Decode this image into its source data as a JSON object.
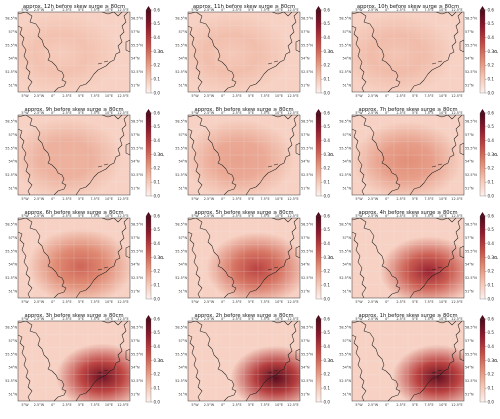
{
  "figure": {
    "panels": [
      {
        "title": "approx. 12h before skew surge ≥ 80cm",
        "intensity": 0.1
      },
      {
        "title": "approx. 11h before skew surge ≥ 80cm",
        "intensity": 0.11
      },
      {
        "title": "approx. 10h before skew surge ≥ 80cm",
        "intensity": 0.12
      },
      {
        "title": "approx. 9h before skew surge ≥ 80cm",
        "intensity": 0.16
      },
      {
        "title": "approx. 8h before skew surge ≥ 80cm",
        "intensity": 0.19
      },
      {
        "title": "approx. 7h before skew surge ≥ 80cm",
        "intensity": 0.23
      },
      {
        "title": "approx. 6h before skew surge ≥ 80cm",
        "intensity": 0.31
      },
      {
        "title": "approx. 5h before skew surge ≥ 80cm",
        "intensity": 0.38
      },
      {
        "title": "approx. 4h before skew surge ≥ 80cm",
        "intensity": 0.46
      },
      {
        "title": "approx. 3h before skew surge ≥ 80cm",
        "intensity": 0.54
      },
      {
        "title": "approx. 2h before skew surge ≥ 80cm",
        "intensity": 0.58
      },
      {
        "title": "approx. 1h before skew surge ≥ 80cm",
        "intensity": 0.56
      }
    ],
    "x_ticks": [
      "5°W",
      "2.5°W",
      "0°",
      "2.5°E",
      "5°E",
      "7.5°E",
      "10°E",
      "12.5°E"
    ],
    "y_ticks": [
      "58.5°N",
      "57°N",
      "55.5°N",
      "54°N",
      "52.5°N",
      "51°N"
    ],
    "colorbar": {
      "label": "β",
      "ticks": [
        "0.6",
        "0.5",
        "0.4",
        "0.3",
        "0.2",
        "0.1",
        "0.0"
      ],
      "range": [
        0,
        0.6
      ],
      "colors": [
        "#fdf1ed",
        "#f4c4b3",
        "#e08a73",
        "#c24a45",
        "#8f1b2e",
        "#4d0a1a"
      ]
    },
    "colors": {
      "sea_base": "#f6d6ca",
      "coast": "#222222",
      "grid": "#e8e8e8"
    }
  },
  "chart_data": {
    "type": "heatmap",
    "variable": "β",
    "value_range": [
      0,
      0.6
    ],
    "lon_range": [
      -5,
      13
    ],
    "lat_range": [
      51,
      59
    ],
    "x_ticks": [
      "5°W",
      "2.5°W",
      "0°",
      "2.5°E",
      "5°E",
      "7.5°E",
      "10°E",
      "12.5°E"
    ],
    "y_ticks": [
      "58.5°N",
      "57°N",
      "55.5°N",
      "54°N",
      "52.5°N",
      "51°N"
    ],
    "panels": [
      {
        "lead_hours": 12,
        "peak_beta": 0.1
      },
      {
        "lead_hours": 11,
        "peak_beta": 0.11
      },
      {
        "lead_hours": 10,
        "peak_beta": 0.12
      },
      {
        "lead_hours": 9,
        "peak_beta": 0.16
      },
      {
        "lead_hours": 8,
        "peak_beta": 0.19
      },
      {
        "lead_hours": 7,
        "peak_beta": 0.23
      },
      {
        "lead_hours": 6,
        "peak_beta": 0.31
      },
      {
        "lead_hours": 5,
        "peak_beta": 0.38
      },
      {
        "lead_hours": 4,
        "peak_beta": 0.46
      },
      {
        "lead_hours": 3,
        "peak_beta": 0.54
      },
      {
        "lead_hours": 2,
        "peak_beta": 0.58
      },
      {
        "lead_hours": 1,
        "peak_beta": 0.56
      }
    ]
  }
}
